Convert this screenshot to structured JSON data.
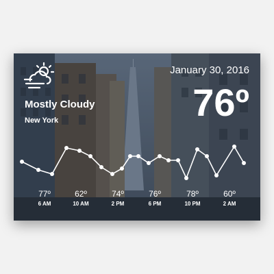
{
  "header": {
    "date": "January 30, 2016",
    "current_temp": "76º",
    "condition": "Mostly Cloudy",
    "location": "New York",
    "icon": "partly-cloudy-windy-icon"
  },
  "forecast": [
    {
      "temp": "77º",
      "time": "6 AM"
    },
    {
      "temp": "62º",
      "time": "10 AM"
    },
    {
      "temp": "74º",
      "time": "2 PM"
    },
    {
      "temp": "76º",
      "time": "6 PM"
    },
    {
      "temp": "78º",
      "time": "10 PM"
    },
    {
      "temp": "60º",
      "time": "2 AM"
    }
  ],
  "colors": {
    "text": "#ffffff",
    "graph_line": "#ffffff",
    "card_shadow": "#000000"
  }
}
